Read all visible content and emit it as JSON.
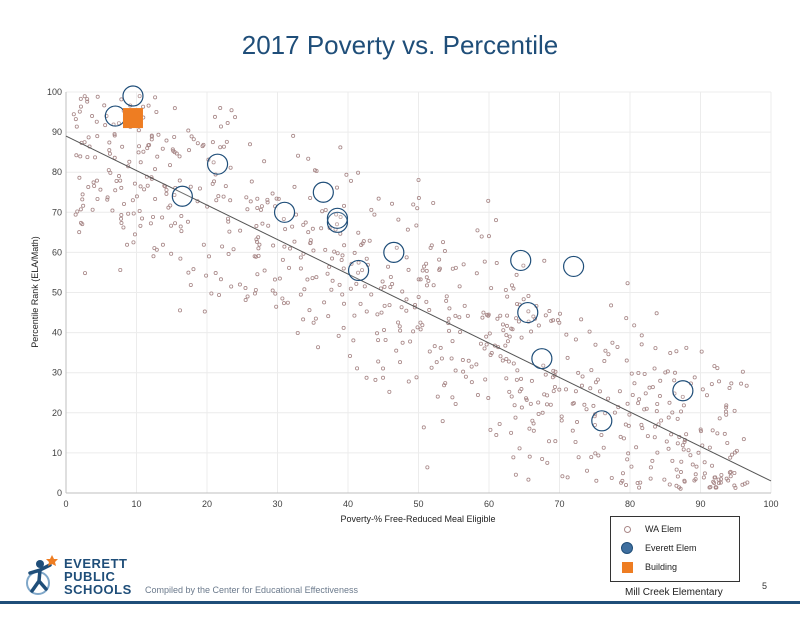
{
  "slide": {
    "title": "2017 Poverty vs. Percentile",
    "compiled_by": "Compiled by the Center for Educational Effectiveness",
    "building_name": "Mill Creek Elementary",
    "page_number": "5",
    "logo_lines": [
      "EVERETT",
      "PUBLIC",
      "SCHOOLS"
    ]
  },
  "legend": {
    "items": [
      {
        "label": "WA Elem",
        "icon": "small-open-circle",
        "color": "#a88888"
      },
      {
        "label": "Everett Elem",
        "icon": "large-blue-circle",
        "color": "#1f4e79"
      },
      {
        "label": "Building",
        "icon": "orange-square",
        "color": "#ee7d22"
      }
    ]
  },
  "chart_data": {
    "type": "scatter",
    "xlabel": "Poverty-% Free-Reduced Meal Eligible",
    "ylabel": "Percentile Rank (ELA/Math)",
    "xlim": [
      0,
      100
    ],
    "ylim": [
      0,
      100
    ],
    "x_ticks": [
      0,
      10,
      20,
      30,
      40,
      50,
      60,
      70,
      80,
      90,
      100
    ],
    "y_ticks": [
      0,
      10,
      20,
      30,
      40,
      50,
      60,
      70,
      80,
      90,
      100
    ],
    "grid": true,
    "trendline": {
      "x": [
        0,
        100
      ],
      "y": [
        89,
        3
      ]
    },
    "series": [
      {
        "name": "Everett Elem",
        "color": "#1f4e79",
        "points": [
          {
            "x": 9.5,
            "y": 99
          },
          {
            "x": 7,
            "y": 94
          },
          {
            "x": 21.5,
            "y": 82
          },
          {
            "x": 16.5,
            "y": 74
          },
          {
            "x": 31,
            "y": 70
          },
          {
            "x": 36.5,
            "y": 75
          },
          {
            "x": 38.5,
            "y": 67.5
          },
          {
            "x": 38.5,
            "y": 68.5
          },
          {
            "x": 46.5,
            "y": 60
          },
          {
            "x": 41.5,
            "y": 55.5
          },
          {
            "x": 64.5,
            "y": 58
          },
          {
            "x": 72,
            "y": 56.5
          },
          {
            "x": 65.5,
            "y": 45
          },
          {
            "x": 67.5,
            "y": 33.5
          },
          {
            "x": 87.5,
            "y": 25.5
          },
          {
            "x": 76,
            "y": 18
          }
        ]
      },
      {
        "name": "Building",
        "color": "#ee7d22",
        "points": [
          {
            "x": 9.5,
            "y": 93.5
          }
        ]
      },
      {
        "name": "WA Elem",
        "color": "#a88888",
        "points": "approximately 800 small open circles scattered around the trendline"
      }
    ]
  }
}
